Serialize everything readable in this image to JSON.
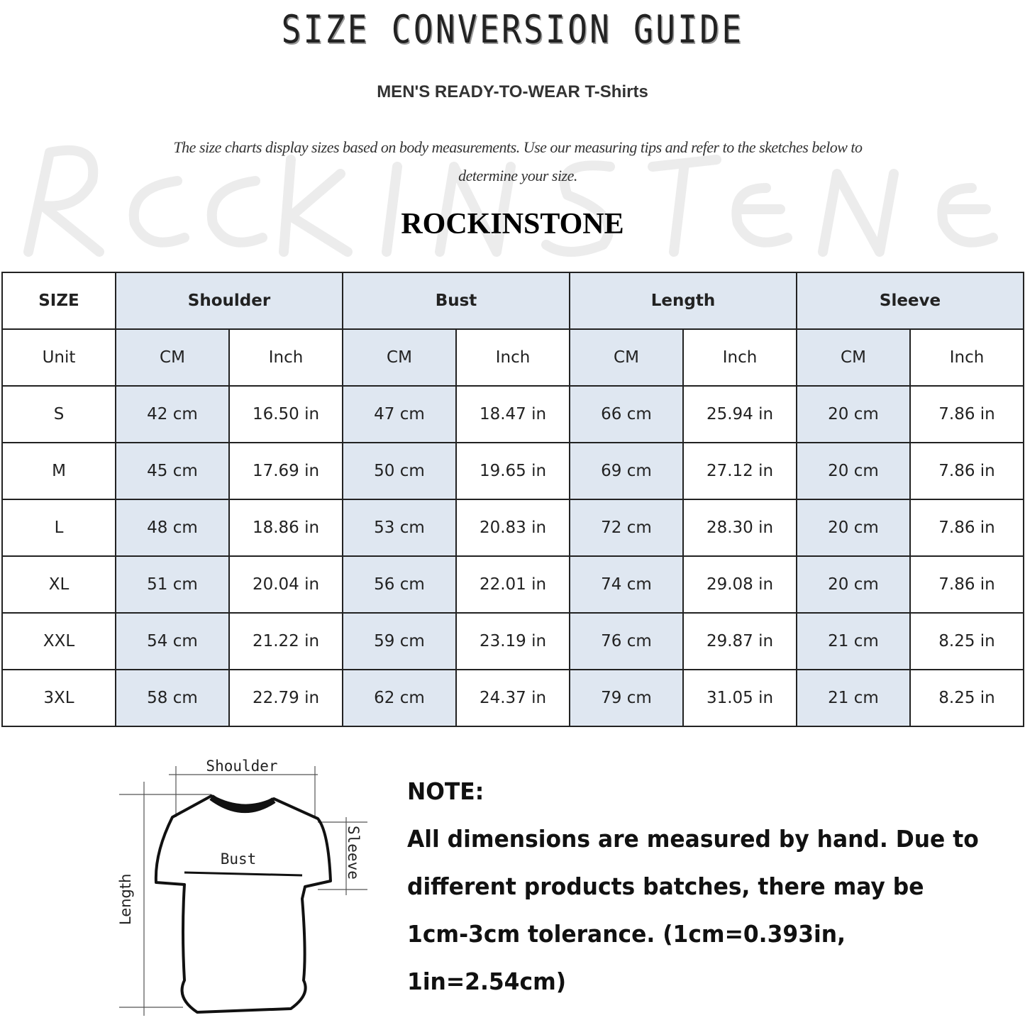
{
  "title": "SIZE CONVERSION GUIDE",
  "subtitle": "MEN'S READY-TO-WEAR T-Shirts",
  "description": "The size charts display sizes based on body measurements. Use our measuring tips and refer to the sketches below to determine your size.",
  "watermark": "Rock In Stone",
  "brand": "ROCKINSTONE",
  "table": {
    "size_header": "SIZE",
    "groups": [
      "Shoulder",
      "Bust",
      "Length",
      "Sleeve"
    ],
    "unit_label": "Unit",
    "units": [
      "CM",
      "Inch"
    ],
    "accent_color": "#dfe7f1",
    "rows": [
      {
        "size": "S",
        "values": [
          "42 cm",
          "16.50 in",
          "47 cm",
          "18.47  in",
          "66 cm",
          "25.94  in",
          "20 cm",
          "7.86  in"
        ]
      },
      {
        "size": "M",
        "values": [
          "45 cm",
          "17.69  in",
          "50 cm",
          "19.65  in",
          "69 cm",
          "27.12  in",
          "20 cm",
          "7.86  in"
        ]
      },
      {
        "size": "L",
        "values": [
          "48 cm",
          "18.86  in",
          "53 cm",
          "20.83  in",
          "72 cm",
          "28.30  in",
          "20 cm",
          "7.86  in"
        ]
      },
      {
        "size": "XL",
        "values": [
          "51 cm",
          "20.04  in",
          "56 cm",
          "22.01  in",
          "74 cm",
          "29.08  in",
          "20 cm",
          "7.86  in"
        ]
      },
      {
        "size": "XXL",
        "values": [
          "54 cm",
          "21.22  in",
          "59 cm",
          "23.19  in",
          "76 cm",
          "29.87  in",
          "21 cm",
          "8.25  in"
        ]
      },
      {
        "size": "3XL",
        "values": [
          "58 cm",
          "22.79  in",
          "62 cm",
          "24.37  in",
          "79 cm",
          "31.05  in",
          "21 cm",
          "8.25  in"
        ]
      }
    ]
  },
  "figure": {
    "shoulder": "Shoulder",
    "bust": "Bust",
    "sleeve": "Sleeve",
    "length": "Length"
  },
  "note": {
    "heading": "NOTE:",
    "lines": [
      "All dimensions are measured by hand. Due to",
      "different products batches, there may be",
      "1cm-3cm tolerance. (1cm=0.393in, 1in=2.54cm)"
    ]
  }
}
